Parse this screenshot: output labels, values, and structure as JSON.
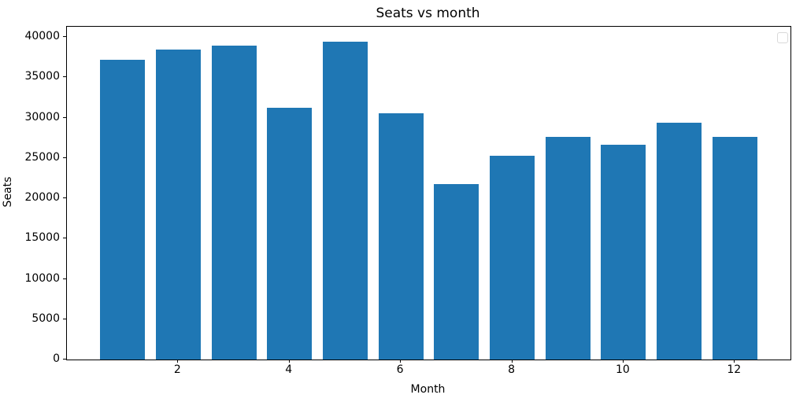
{
  "figure": {
    "background_color": "#ffffff",
    "spine_color": "#000000",
    "legend": {
      "visible": true,
      "entries": [],
      "position": "upper right"
    }
  },
  "chart_data": {
    "type": "bar",
    "title": "Seats vs month",
    "xlabel": "Month",
    "ylabel": "Seats",
    "categories": [
      1,
      2,
      3,
      4,
      5,
      6,
      7,
      8,
      9,
      10,
      11,
      12
    ],
    "values": [
      37150,
      38450,
      38900,
      31250,
      39400,
      30500,
      21800,
      25300,
      27600,
      26600,
      29350,
      27600
    ],
    "bar_color": "#1f77b4",
    "x_ticks": [
      2,
      4,
      6,
      8,
      10,
      12
    ],
    "y_ticks": [
      0,
      5000,
      10000,
      15000,
      20000,
      25000,
      30000,
      35000,
      40000
    ],
    "xlim": [
      0,
      13
    ],
    "ylim": [
      0,
      41270
    ],
    "grid": false,
    "legend_position": "upper right"
  }
}
